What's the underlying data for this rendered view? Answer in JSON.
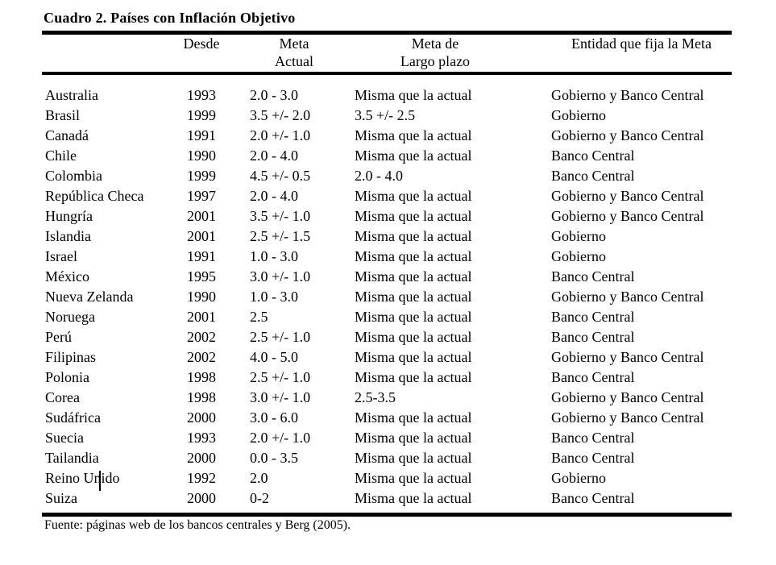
{
  "title": "Cuadro 2. Países con Inflación Objetivo",
  "table": {
    "headers": {
      "country": "",
      "desde": "Desde",
      "meta_actual_line1": "Meta",
      "meta_actual_line2": "Actual",
      "meta_lp_line1": "Meta de",
      "meta_lp_line2": "Largo plazo",
      "entidad": "Entidad que fija la Meta"
    },
    "rows": [
      {
        "country": "Australia",
        "desde": "1993",
        "meta_actual": "2.0 - 3.0",
        "meta_largo_plazo": "Misma que la actual",
        "entidad": "Gobierno y Banco Central"
      },
      {
        "country": "Brasil",
        "desde": "1999",
        "meta_actual": "3.5 +/- 2.0",
        "meta_largo_plazo": "3.5 +/- 2.5",
        "entidad": "Gobierno"
      },
      {
        "country": "Canadá",
        "desde": "1991",
        "meta_actual": "2.0 +/- 1.0",
        "meta_largo_plazo": "Misma que la actual",
        "entidad": "Gobierno y Banco Central"
      },
      {
        "country": "Chile",
        "desde": "1990",
        "meta_actual": "2.0 - 4.0",
        "meta_largo_plazo": "Misma que la actual",
        "entidad": "Banco Central"
      },
      {
        "country": "Colombia",
        "desde": "1999",
        "meta_actual": "4.5 +/- 0.5",
        "meta_largo_plazo": "2.0 - 4.0",
        "entidad": "Banco Central"
      },
      {
        "country": "República Checa",
        "desde": "1997",
        "meta_actual": "2.0 - 4.0",
        "meta_largo_plazo": "Misma que la actual",
        "entidad": "Gobierno y Banco Central"
      },
      {
        "country": "Hungría",
        "desde": "2001",
        "meta_actual": "3.5 +/- 1.0",
        "meta_largo_plazo": "Misma que la actual",
        "entidad": "Gobierno y Banco Central"
      },
      {
        "country": "Islandia",
        "desde": "2001",
        "meta_actual": "2.5 +/- 1.5",
        "meta_largo_plazo": "Misma que la actual",
        "entidad": "Gobierno"
      },
      {
        "country": "Israel",
        "desde": "1991",
        "meta_actual": "1.0 - 3.0",
        "meta_largo_plazo": "Misma que la actual",
        "entidad": "Gobierno"
      },
      {
        "country": "México",
        "desde": "1995",
        "meta_actual": "3.0 +/- 1.0",
        "meta_largo_plazo": "Misma que la actual",
        "entidad": "Banco Central"
      },
      {
        "country": "Nueva Zelanda",
        "desde": "1990",
        "meta_actual": "1.0 - 3.0",
        "meta_largo_plazo": "Misma que la actual",
        "entidad": "Gobierno y Banco Central"
      },
      {
        "country": "Noruega",
        "desde": "2001",
        "meta_actual": "2.5",
        "meta_largo_plazo": "Misma que la actual",
        "entidad": "Banco Central"
      },
      {
        "country": "Perú",
        "desde": "2002",
        "meta_actual": "2.5 +/- 1.0",
        "meta_largo_plazo": "Misma que la actual",
        "entidad": "Banco Central"
      },
      {
        "country": "Filipinas",
        "desde": "2002",
        "meta_actual": "4.0 - 5.0",
        "meta_largo_plazo": "Misma que la actual",
        "entidad": "Gobierno y Banco Central"
      },
      {
        "country": "Polonia",
        "desde": "1998",
        "meta_actual": "2.5 +/- 1.0",
        "meta_largo_plazo": "Misma que la actual",
        "entidad": "Banco Central"
      },
      {
        "country": "Corea",
        "desde": "1998",
        "meta_actual": "3.0 +/- 1.0",
        "meta_largo_plazo": "2.5-3.5",
        "entidad": "Gobierno y Banco Central"
      },
      {
        "country": "Sudáfrica",
        "desde": "2000",
        "meta_actual": "3.0 - 6.0",
        "meta_largo_plazo": "Misma que la actual",
        "entidad": "Gobierno y Banco Central"
      },
      {
        "country": "Suecia",
        "desde": "1993",
        "meta_actual": "2.0 +/- 1.0",
        "meta_largo_plazo": "Misma que la actual",
        "entidad": "Banco Central"
      },
      {
        "country": "Tailandia",
        "desde": "2000",
        "meta_actual": "0.0 - 3.5",
        "meta_largo_plazo": "Misma que la actual",
        "entidad": "Banco Central"
      },
      {
        "country": "Reino Unido",
        "desde": "1992",
        "meta_actual": "2.0",
        "meta_largo_plazo": "Misma que la actual",
        "entidad": "Gobierno"
      },
      {
        "country": "Suiza",
        "desde": "2000",
        "meta_actual": "0-2",
        "meta_largo_plazo": "Misma que la actual",
        "entidad": "Banco Central"
      }
    ]
  },
  "source_note": "Fuente: páginas web de los bancos centrales y Berg (2005).",
  "colors": {
    "text": "#000000",
    "background": "#ffffff",
    "rule": "#000000"
  }
}
